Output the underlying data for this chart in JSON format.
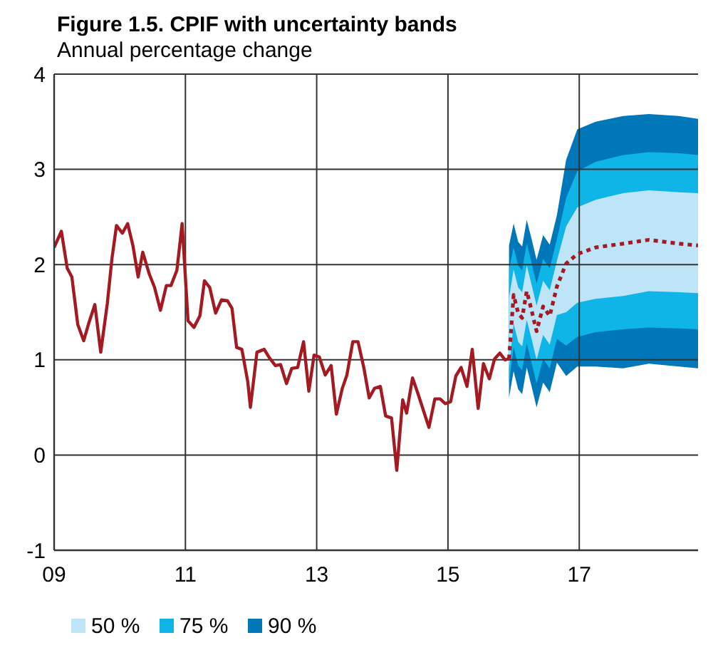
{
  "chart_data": {
    "type": "line",
    "title": "Figure 1.5. CPIF with uncertainty bands",
    "subtitle": "Annual percentage change",
    "xlim": [
      2009,
      2018.81
    ],
    "xticks": [
      {
        "value": 2009,
        "label": "09"
      },
      {
        "value": 2011,
        "label": "11"
      },
      {
        "value": 2013,
        "label": "13"
      },
      {
        "value": 2015,
        "label": "15"
      },
      {
        "value": 2017,
        "label": "17"
      }
    ],
    "ylim": [
      -1,
      4
    ],
    "yticks": [
      -1,
      0,
      1,
      2,
      3,
      4
    ],
    "grid": true,
    "legend": "bottom",
    "series": [
      {
        "type": "line",
        "line_style": "dotted",
        "name": "50 %",
        "color": "#bde4f7",
        "x": [
          2015.93,
          2016.0,
          2016.07,
          2016.13,
          2016.2,
          2016.27,
          2016.35,
          2016.45,
          2016.55,
          2016.66,
          2016.8,
          2016.97,
          2017.25,
          2017.67,
          2018.06,
          2018.52,
          2018.81
        ],
        "values": [
          null,
          null,
          null,
          null,
          null,
          null,
          null,
          null,
          null,
          null,
          null,
          null,
          null,
          null,
          null,
          null,
          null
        ],
        "lower": [
          0.9,
          1.38,
          1.19,
          1.14,
          1.42,
          1.23,
          1.0,
          1.26,
          1.16,
          1.47,
          1.5,
          1.6,
          1.64,
          1.67,
          1.72,
          1.71,
          1.7
        ],
        "upper": [
          1.65,
          1.95,
          1.76,
          1.71,
          1.99,
          1.8,
          1.57,
          1.83,
          1.73,
          2.04,
          2.4,
          2.6,
          2.68,
          2.75,
          2.78,
          2.76,
          2.75
        ]
      },
      {
        "type": "line",
        "line_style": "dotted",
        "name": "75 %",
        "color": "#10b5e8",
        "x": [
          2015.93,
          2016.0,
          2016.07,
          2016.13,
          2016.2,
          2016.27,
          2016.35,
          2016.45,
          2016.55,
          2016.66,
          2016.8,
          2016.97,
          2017.25,
          2017.67,
          2018.06,
          2018.52,
          2018.81
        ],
        "values": [
          null,
          null,
          null,
          null,
          null,
          null,
          null,
          null,
          null,
          null,
          null,
          null,
          null,
          null,
          null,
          null,
          null
        ],
        "lower": [
          0.75,
          1.13,
          0.94,
          0.89,
          1.17,
          0.98,
          0.75,
          1.01,
          0.91,
          1.22,
          1.15,
          1.24,
          1.29,
          1.32,
          1.34,
          1.33,
          1.32
        ],
        "upper": [
          1.95,
          2.18,
          1.99,
          1.94,
          2.22,
          2.03,
          1.8,
          2.06,
          1.96,
          2.27,
          2.7,
          2.98,
          3.08,
          3.15,
          3.18,
          3.17,
          3.15
        ]
      },
      {
        "type": "line",
        "line_style": "dotted",
        "name": "90 %",
        "color": "#0077b8",
        "x": [
          2015.93,
          2016.0,
          2016.07,
          2016.13,
          2016.2,
          2016.27,
          2016.35,
          2016.45,
          2016.55,
          2016.66,
          2016.8,
          2016.97,
          2017.25,
          2017.67,
          2018.06,
          2018.52,
          2018.81
        ],
        "values": [
          null,
          null,
          null,
          null,
          null,
          null,
          null,
          null,
          null,
          null,
          null,
          null,
          null,
          null,
          null,
          null,
          null
        ],
        "lower": [
          0.6,
          0.88,
          0.69,
          0.64,
          0.92,
          0.73,
          0.5,
          0.76,
          0.66,
          0.97,
          0.83,
          0.93,
          0.93,
          0.91,
          0.96,
          0.93,
          0.91
        ],
        "upper": [
          2.2,
          2.43,
          2.24,
          2.19,
          2.47,
          2.28,
          2.05,
          2.31,
          2.21,
          2.52,
          3.1,
          3.42,
          3.5,
          3.56,
          3.58,
          3.56,
          3.53
        ]
      },
      {
        "color": "#a31a22",
        "line_style": "solid",
        "x": [
          2009.0,
          2009.11,
          2009.2,
          2009.27,
          2009.36,
          2009.45,
          2009.53,
          2009.62,
          2009.71,
          2009.81,
          2009.88,
          2009.95,
          2010.04,
          2010.12,
          2010.2,
          2010.28,
          2010.35,
          2010.45,
          2010.53,
          2010.62,
          2010.71,
          2010.78,
          2010.87,
          2010.95,
          2011.04,
          2011.13,
          2011.22,
          2011.29,
          2011.37,
          2011.46,
          2011.55,
          2011.64,
          2011.71,
          2011.78,
          2011.86,
          2011.95,
          2011.99,
          2012.09,
          2012.2,
          2012.28,
          2012.37,
          2012.45,
          2012.54,
          2012.62,
          2012.71,
          2012.8,
          2012.88,
          2012.96,
          2013.04,
          2013.13,
          2013.22,
          2013.3,
          2013.39,
          2013.46,
          2013.55,
          2013.63,
          2013.72,
          2013.8,
          2013.88,
          2013.97,
          2014.05,
          2014.14,
          2014.22,
          2014.31,
          2014.37,
          2014.46,
          2014.54,
          2014.63,
          2014.71,
          2014.8,
          2014.88,
          2014.96,
          2015.04,
          2015.12,
          2015.2,
          2015.29,
          2015.37,
          2015.46,
          2015.54,
          2015.63,
          2015.71,
          2015.79,
          2015.87,
          2015.93
        ],
        "values": [
          2.18,
          2.35,
          1.96,
          1.87,
          1.37,
          1.2,
          1.39,
          1.58,
          1.08,
          1.59,
          2.06,
          2.41,
          2.33,
          2.43,
          2.2,
          1.87,
          2.13,
          1.9,
          1.76,
          1.52,
          1.78,
          1.78,
          1.94,
          2.43,
          1.41,
          1.34,
          1.46,
          1.83,
          1.76,
          1.49,
          1.63,
          1.62,
          1.54,
          1.13,
          1.11,
          0.77,
          0.5,
          1.08,
          1.11,
          1.02,
          0.94,
          0.95,
          0.75,
          0.91,
          0.92,
          1.19,
          0.67,
          1.05,
          1.03,
          0.84,
          0.94,
          0.43,
          0.7,
          0.84,
          1.19,
          1.19,
          0.91,
          0.6,
          0.7,
          0.72,
          0.41,
          0.39,
          -0.16,
          0.58,
          0.44,
          0.81,
          0.65,
          0.46,
          0.29,
          0.59,
          0.59,
          0.54,
          0.56,
          0.83,
          0.92,
          0.72,
          1.11,
          0.49,
          0.96,
          0.8,
          1.01,
          1.07,
          1.0,
          1.01
        ]
      },
      {
        "type": "line",
        "color": "#a31a22",
        "line_style": "dotted",
        "x": [
          2015.93,
          2016.0,
          2016.07,
          2016.13,
          2016.2,
          2016.27,
          2016.35,
          2016.45,
          2016.55,
          2016.66,
          2016.8,
          2016.97,
          2017.25,
          2017.67,
          2018.06,
          2018.52,
          2018.81
        ],
        "values": [
          1.01,
          1.68,
          1.49,
          1.44,
          1.72,
          1.53,
          1.3,
          1.56,
          1.46,
          1.77,
          2.01,
          2.11,
          2.18,
          2.22,
          2.26,
          2.22,
          2.2
        ]
      }
    ]
  }
}
